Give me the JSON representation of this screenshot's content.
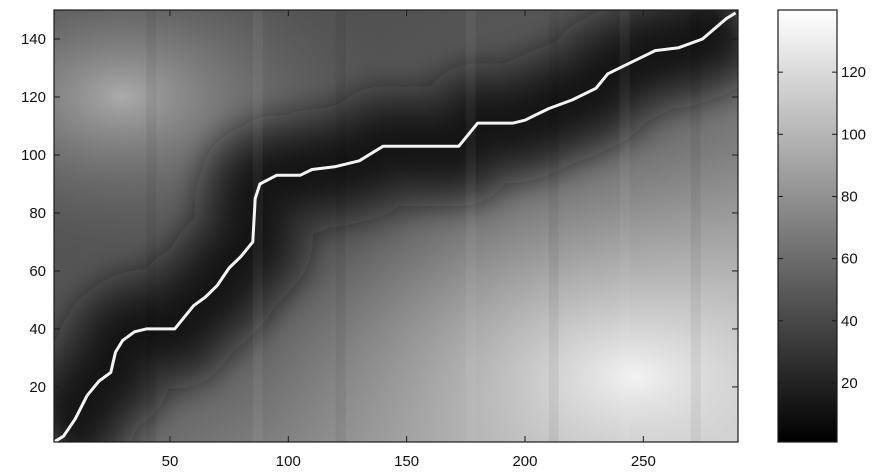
{
  "chart_data": [
    {
      "type": "heatmap",
      "title": "",
      "xlabel": "",
      "ylabel": "",
      "xlim": [
        1,
        290
      ],
      "ylim": [
        1,
        150
      ],
      "x_ticks": [
        "50",
        "100",
        "150",
        "200",
        "250"
      ],
      "y_ticks": [
        "20",
        "40",
        "60",
        "80",
        "100",
        "120",
        "140"
      ],
      "colormap": "gray",
      "color_range": [
        1,
        140
      ],
      "grid": false,
      "regions": [
        {
          "description": "dark band along warping path",
          "level": 15
        },
        {
          "description": "bright lower-right region",
          "level": 125
        },
        {
          "description": "medium-light upper-left region",
          "level": 80
        }
      ],
      "series": [
        {
          "type": "line",
          "color": "#f4f4f4",
          "x": [
            1,
            5,
            10,
            15,
            20,
            25,
            27,
            30,
            35,
            40,
            52,
            55,
            60,
            65,
            70,
            75,
            80,
            85,
            86,
            88,
            95,
            105,
            110,
            120,
            130,
            140,
            150,
            165,
            172,
            180,
            195,
            200,
            205,
            210,
            220,
            230,
            235,
            245,
            255,
            265,
            275,
            285,
            289
          ],
          "y": [
            1,
            3,
            9,
            17,
            22,
            25,
            32,
            36,
            39,
            40,
            40,
            43,
            48,
            51,
            55,
            61,
            65,
            70,
            85,
            90,
            93,
            93,
            95,
            96,
            98,
            103,
            103,
            103,
            103,
            111,
            111,
            112,
            114,
            116,
            119,
            123,
            128,
            132,
            136,
            137,
            140,
            147,
            149
          ]
        }
      ]
    },
    {
      "type": "heatmap",
      "title": "",
      "ylabel": "",
      "colorbar": true,
      "ylim": [
        1,
        140
      ],
      "y_ticks": [
        "20",
        "40",
        "60",
        "80",
        "100",
        "120"
      ],
      "colormap": "gray"
    }
  ]
}
